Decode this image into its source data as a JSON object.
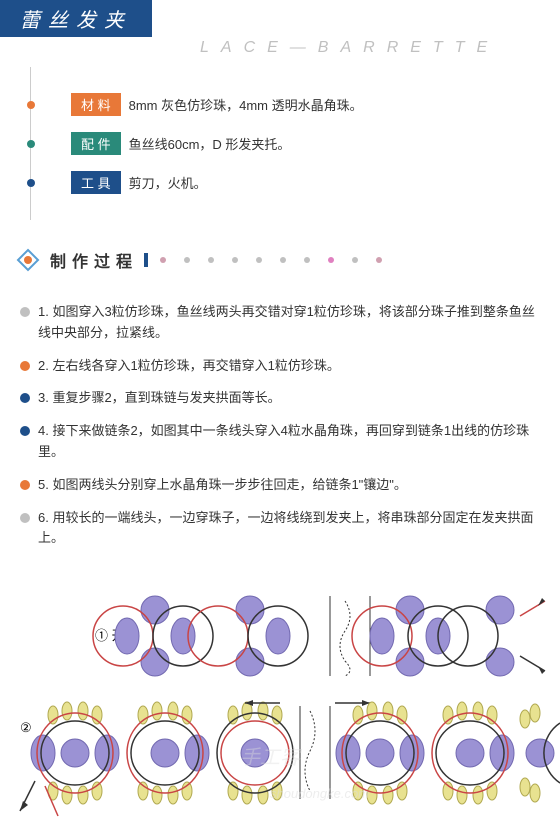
{
  "header": {
    "title": "蕾丝发夹",
    "subtitle": "LACE—BARRETTE"
  },
  "info": [
    {
      "color": "orange",
      "label": "材 料",
      "text": "8mm 灰色仿珍珠，4mm 透明水晶角珠。"
    },
    {
      "color": "teal",
      "label": "配 件",
      "text": "鱼丝线60cm，D 形发夹托。"
    },
    {
      "color": "navy",
      "label": "工 具",
      "text": "剪刀，火机。"
    }
  ],
  "section_title": "制作过程",
  "section_dots": [
    "#d0a0b0",
    "#c0c0c0",
    "#c0c0c0",
    "#c0c0c0",
    "#c0c0c0",
    "#c0c0c0",
    "#c0c0c0",
    "#e080c0",
    "#c0c0c0",
    "#d0a0b0"
  ],
  "steps": [
    {
      "bullet": "#c0c0c0",
      "text": "1. 如图穿入3粒仿珍珠，鱼丝线两头再交错对穿1粒仿珍珠，将该部分珠子推到整条鱼丝线中央部分，拉紧线。"
    },
    {
      "bullet": "#e87838",
      "text": "2. 左右线各穿入1粒仿珍珠，再交错穿入1粒仿珍珠。"
    },
    {
      "bullet": "#1e4f8a",
      "text": "3. 重复步骤2，直到珠链与发夹拱面等长。"
    },
    {
      "bullet": "#1e4f8a",
      "text": "4. 接下来做链条2，如图其中一条线头穿入4粒水晶角珠，再回穿到链条1出线的仿珍珠里。"
    },
    {
      "bullet": "#e87838",
      "text": "5. 如图两线头分别穿上水晶角珠一步步往回走，给链条1\"镶边\"。"
    },
    {
      "bullet": "#c0c0c0",
      "text": "6. 用较长的一端线头，一边穿珠子，一边将线绕到发夹上，将串珠部分固定在发夹拱面上。"
    }
  ],
  "diagram": {
    "label1": "① 开始",
    "label2": "②",
    "bead_fill": "#9b92d4",
    "bead_stroke": "#7269b0",
    "small_bead_fill": "#e8e290",
    "small_bead_stroke": "#b0a850",
    "thread_red": "#c94545",
    "thread_black": "#333333"
  },
  "watermark": "shoudongke.com"
}
